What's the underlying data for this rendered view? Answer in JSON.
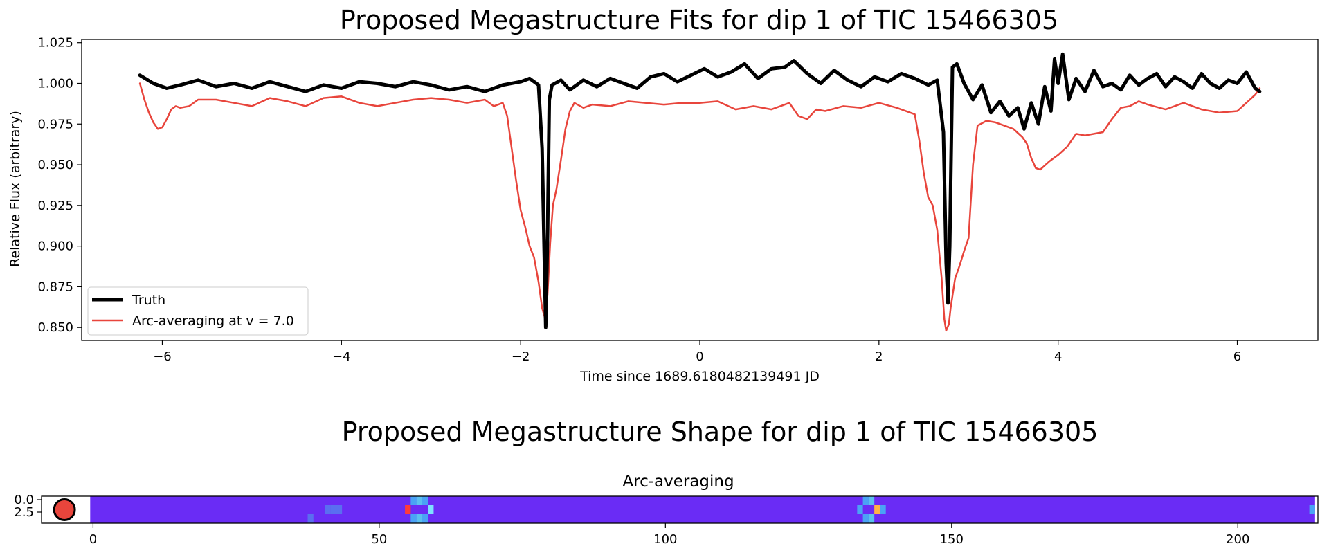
{
  "figure": {
    "title_top": "Proposed Megastructure Fits for dip 1 of TIC 15466305",
    "title_bottom": "Proposed Megastructure Shape for dip 1 of TIC 15466305"
  },
  "chart_data": [
    {
      "type": "line",
      "title": "Proposed Megastructure Fits for dip 1 of TIC 15466305",
      "xlabel": "Time since 1689.6180482139491 JD",
      "ylabel": "Relative Flux (arbitrary)",
      "xlim": [
        -6.9,
        6.9
      ],
      "ylim": [
        0.842,
        1.027
      ],
      "xticks": [
        -6,
        -4,
        -2,
        0,
        2,
        4,
        6
      ],
      "xtick_labels": [
        "−6",
        "−4",
        "−2",
        "0",
        "2",
        "4",
        "6"
      ],
      "yticks": [
        0.85,
        0.875,
        0.9,
        0.925,
        0.95,
        0.975,
        1.0,
        1.025
      ],
      "ytick_labels": [
        "0.850",
        "0.875",
        "0.900",
        "0.925",
        "0.950",
        "0.975",
        "1.000",
        "1.025"
      ],
      "grid": false,
      "legend_position": "lower-left",
      "series": [
        {
          "name": "Truth",
          "color": "#000000",
          "x": [
            -6.25,
            -6.1,
            -5.95,
            -5.8,
            -5.6,
            -5.4,
            -5.2,
            -5.0,
            -4.8,
            -4.6,
            -4.4,
            -4.2,
            -4.0,
            -3.8,
            -3.6,
            -3.4,
            -3.2,
            -3.0,
            -2.8,
            -2.6,
            -2.4,
            -2.2,
            -2.0,
            -1.9,
            -1.8,
            -1.76,
            -1.74,
            -1.72,
            -1.7,
            -1.68,
            -1.65,
            -1.55,
            -1.45,
            -1.3,
            -1.15,
            -1.0,
            -0.85,
            -0.7,
            -0.55,
            -0.4,
            -0.25,
            -0.1,
            0.05,
            0.2,
            0.35,
            0.5,
            0.65,
            0.8,
            0.95,
            1.05,
            1.2,
            1.35,
            1.5,
            1.65,
            1.8,
            1.95,
            2.1,
            2.25,
            2.4,
            2.55,
            2.65,
            2.72,
            2.75,
            2.77,
            2.79,
            2.82,
            2.87,
            2.95,
            3.05,
            3.15,
            3.25,
            3.35,
            3.45,
            3.55,
            3.62,
            3.7,
            3.78,
            3.85,
            3.92,
            3.96,
            4.0,
            4.05,
            4.12,
            4.2,
            4.3,
            4.4,
            4.5,
            4.6,
            4.7,
            4.8,
            4.9,
            5.0,
            5.1,
            5.2,
            5.3,
            5.4,
            5.5,
            5.6,
            5.7,
            5.8,
            5.9,
            6.0,
            6.1,
            6.2,
            6.25
          ],
          "y": [
            1.005,
            1.0,
            0.997,
            0.999,
            1.002,
            0.998,
            1.0,
            0.997,
            1.001,
            0.998,
            0.995,
            0.999,
            0.997,
            1.001,
            1.0,
            0.998,
            1.001,
            0.999,
            0.996,
            0.998,
            0.995,
            0.999,
            1.001,
            1.003,
            0.999,
            0.96,
            0.905,
            0.85,
            0.905,
            0.99,
            0.999,
            1.002,
            0.996,
            1.002,
            0.998,
            1.003,
            1.0,
            0.997,
            1.004,
            1.006,
            1.001,
            1.005,
            1.009,
            1.004,
            1.007,
            1.012,
            1.003,
            1.009,
            1.01,
            1.014,
            1.006,
            1.0,
            1.008,
            1.002,
            0.998,
            1.004,
            1.001,
            1.006,
            1.003,
            0.999,
            1.002,
            0.97,
            0.89,
            0.865,
            0.9,
            1.01,
            1.012,
            1.0,
            0.99,
            0.999,
            0.982,
            0.989,
            0.98,
            0.985,
            0.972,
            0.988,
            0.975,
            0.998,
            0.983,
            1.015,
            1.0,
            1.018,
            0.99,
            1.003,
            0.995,
            1.008,
            0.998,
            1.0,
            0.996,
            1.005,
            0.999,
            1.003,
            1.006,
            0.998,
            1.004,
            1.001,
            0.997,
            1.006,
            1.0,
            0.997,
            1.002,
            1.0,
            1.007,
            0.997,
            0.995
          ]
        },
        {
          "name": "Arc-averaging at v = 7.0",
          "color": "#e8453c",
          "x": [
            -6.25,
            -6.2,
            -6.15,
            -6.1,
            -6.05,
            -6.0,
            -5.95,
            -5.9,
            -5.85,
            -5.8,
            -5.7,
            -5.6,
            -5.4,
            -5.2,
            -5.0,
            -4.8,
            -4.6,
            -4.4,
            -4.2,
            -4.0,
            -3.8,
            -3.6,
            -3.4,
            -3.2,
            -3.0,
            -2.8,
            -2.6,
            -2.4,
            -2.3,
            -2.2,
            -2.15,
            -2.1,
            -2.05,
            -2.0,
            -1.95,
            -1.9,
            -1.85,
            -1.8,
            -1.76,
            -1.73,
            -1.7,
            -1.67,
            -1.64,
            -1.6,
            -1.55,
            -1.5,
            -1.45,
            -1.4,
            -1.3,
            -1.2,
            -1.0,
            -0.8,
            -0.6,
            -0.4,
            -0.2,
            0.0,
            0.2,
            0.4,
            0.6,
            0.8,
            1.0,
            1.1,
            1.2,
            1.3,
            1.4,
            1.6,
            1.8,
            2.0,
            2.2,
            2.4,
            2.45,
            2.5,
            2.55,
            2.6,
            2.65,
            2.7,
            2.73,
            2.75,
            2.78,
            2.8,
            2.85,
            2.9,
            2.95,
            3.0,
            3.05,
            3.1,
            3.2,
            3.3,
            3.4,
            3.5,
            3.6,
            3.65,
            3.7,
            3.75,
            3.8,
            3.9,
            4.0,
            4.1,
            4.2,
            4.3,
            4.4,
            4.5,
            4.6,
            4.7,
            4.8,
            4.9,
            5.0,
            5.2,
            5.4,
            5.6,
            5.8,
            6.0,
            6.1,
            6.2,
            6.25
          ],
          "y": [
            1.0,
            0.99,
            0.982,
            0.976,
            0.972,
            0.973,
            0.978,
            0.984,
            0.986,
            0.985,
            0.986,
            0.99,
            0.99,
            0.988,
            0.986,
            0.991,
            0.989,
            0.986,
            0.991,
            0.992,
            0.988,
            0.986,
            0.988,
            0.99,
            0.991,
            0.99,
            0.988,
            0.99,
            0.986,
            0.988,
            0.98,
            0.96,
            0.94,
            0.922,
            0.912,
            0.9,
            0.893,
            0.878,
            0.862,
            0.856,
            0.87,
            0.902,
            0.925,
            0.935,
            0.953,
            0.972,
            0.983,
            0.988,
            0.985,
            0.987,
            0.986,
            0.989,
            0.988,
            0.987,
            0.988,
            0.988,
            0.989,
            0.984,
            0.986,
            0.984,
            0.988,
            0.98,
            0.978,
            0.984,
            0.983,
            0.986,
            0.985,
            0.988,
            0.985,
            0.981,
            0.965,
            0.945,
            0.93,
            0.925,
            0.91,
            0.88,
            0.855,
            0.848,
            0.852,
            0.862,
            0.88,
            0.888,
            0.897,
            0.905,
            0.95,
            0.974,
            0.977,
            0.976,
            0.974,
            0.972,
            0.967,
            0.963,
            0.954,
            0.948,
            0.947,
            0.952,
            0.956,
            0.961,
            0.969,
            0.968,
            0.969,
            0.97,
            0.978,
            0.985,
            0.986,
            0.989,
            0.987,
            0.984,
            0.988,
            0.984,
            0.982,
            0.983,
            0.988,
            0.993,
            0.997
          ]
        }
      ]
    },
    {
      "type": "heatmap",
      "title": "Arc-averaging",
      "xticks": [
        0,
        50,
        100,
        150,
        200
      ],
      "xtick_labels": [
        "0",
        "50",
        "100",
        "150",
        "200"
      ],
      "yticks": [
        0.0,
        2.5
      ],
      "ytick_labels": [
        "0.0",
        "2.5"
      ],
      "xlim": [
        -9,
        214
      ],
      "n_cols": 214,
      "background_color": "#6a2cf5",
      "star": {
        "x": -5,
        "color": "#e8453c"
      },
      "highlight_cells": [
        {
          "x": 55,
          "row": 1,
          "color": "#ff3b3b"
        },
        {
          "x": 56,
          "row": 0,
          "color": "#4aa3f5"
        },
        {
          "x": 56,
          "row": 2,
          "color": "#4aa3f5"
        },
        {
          "x": 57,
          "row": 0,
          "color": "#5bc0f0"
        },
        {
          "x": 57,
          "row": 2,
          "color": "#5bc0f0"
        },
        {
          "x": 58,
          "row": 0,
          "color": "#4aa3f5"
        },
        {
          "x": 58,
          "row": 2,
          "color": "#4aa3f5"
        },
        {
          "x": 59,
          "row": 1,
          "color": "#7ee0ff"
        },
        {
          "x": 41,
          "row": 1,
          "color": "#5a6ef0"
        },
        {
          "x": 42,
          "row": 1,
          "color": "#5a6ef0"
        },
        {
          "x": 43,
          "row": 1,
          "color": "#5a6ef0"
        },
        {
          "x": 38,
          "row": 2,
          "color": "#5a6ef0"
        },
        {
          "x": 134,
          "row": 1,
          "color": "#4aa3f5"
        },
        {
          "x": 135,
          "row": 0,
          "color": "#4aa3f5"
        },
        {
          "x": 135,
          "row": 2,
          "color": "#4aa3f5"
        },
        {
          "x": 136,
          "row": 0,
          "color": "#5bc0f0"
        },
        {
          "x": 136,
          "row": 2,
          "color": "#5bc0f0"
        },
        {
          "x": 137,
          "row": 1,
          "color": "#ffb347"
        },
        {
          "x": 138,
          "row": 1,
          "color": "#4aa3f5"
        },
        {
          "x": 213,
          "row": 1,
          "color": "#4aa3f5"
        }
      ]
    }
  ]
}
